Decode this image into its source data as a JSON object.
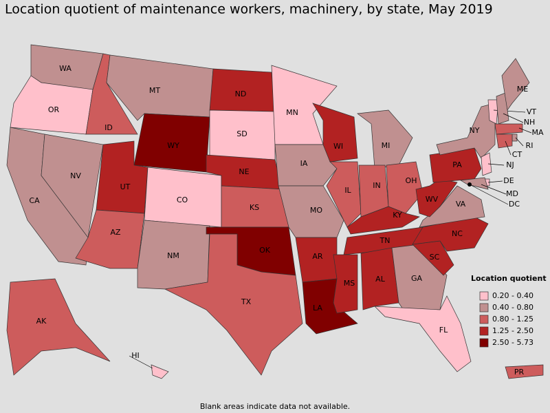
{
  "title": "Location quotient of maintenance workers, machinery, by state, May 2019",
  "legend": {
    "title": "Location quotient",
    "items": [
      {
        "label": "0.20 - 0.40",
        "color": "#ffc0cb"
      },
      {
        "label": "0.40 - 0.80",
        "color": "#c09090"
      },
      {
        "label": "0.80 - 1.25",
        "color": "#cd5c5c"
      },
      {
        "label": "1.25 - 2.50",
        "color": "#b22222"
      },
      {
        "label": "2.50 - 5.73",
        "color": "#800000"
      }
    ]
  },
  "states": [
    {
      "label": "WA",
      "class": 1
    },
    {
      "label": "OR",
      "class": 0
    },
    {
      "label": "CA",
      "class": 1
    },
    {
      "label": "NV",
      "class": 1
    },
    {
      "label": "ID",
      "class": 2
    },
    {
      "label": "MT",
      "class": 1
    },
    {
      "label": "WY",
      "class": 4
    },
    {
      "label": "UT",
      "class": 3
    },
    {
      "label": "AZ",
      "class": 2
    },
    {
      "label": "CO",
      "class": 0
    },
    {
      "label": "NM",
      "class": 1
    },
    {
      "label": "ND",
      "class": 3
    },
    {
      "label": "SD",
      "class": 0
    },
    {
      "label": "NE",
      "class": 3
    },
    {
      "label": "KS",
      "class": 2
    },
    {
      "label": "OK",
      "class": 4
    },
    {
      "label": "TX",
      "class": 2
    },
    {
      "label": "MN",
      "class": 0
    },
    {
      "label": "IA",
      "class": 1
    },
    {
      "label": "MO",
      "class": 1
    },
    {
      "label": "AR",
      "class": 3
    },
    {
      "label": "LA",
      "class": 4
    },
    {
      "label": "WI",
      "class": 3
    },
    {
      "label": "IL",
      "class": 2
    },
    {
      "label": "MI",
      "class": 1
    },
    {
      "label": "IN",
      "class": 2
    },
    {
      "label": "OH",
      "class": 2
    },
    {
      "label": "KY",
      "class": 3
    },
    {
      "label": "TN",
      "class": 3
    },
    {
      "label": "MS",
      "class": 3
    },
    {
      "label": "AL",
      "class": 3
    },
    {
      "label": "GA",
      "class": 1
    },
    {
      "label": "FL",
      "class": 0
    },
    {
      "label": "SC",
      "class": 3
    },
    {
      "label": "NC",
      "class": 3
    },
    {
      "label": "VA",
      "class": 1
    },
    {
      "label": "WV",
      "class": 3
    },
    {
      "label": "PA",
      "class": 3
    },
    {
      "label": "NY",
      "class": 1
    },
    {
      "label": "VT",
      "class": 0
    },
    {
      "label": "NH",
      "class": 1
    },
    {
      "label": "ME",
      "class": 1
    },
    {
      "label": "MA",
      "class": 2
    },
    {
      "label": "RI",
      "class": 1
    },
    {
      "label": "CT",
      "class": 2
    },
    {
      "label": "NJ",
      "class": 0
    },
    {
      "label": "DE",
      "class": 0
    },
    {
      "label": "MD",
      "class": 1
    },
    {
      "label": "DC",
      "class": 1
    },
    {
      "label": "AK",
      "class": 2
    },
    {
      "label": "HI",
      "class": 0
    },
    {
      "label": "PR",
      "class": 2
    }
  ],
  "note": "Blank areas indicate data not available."
}
